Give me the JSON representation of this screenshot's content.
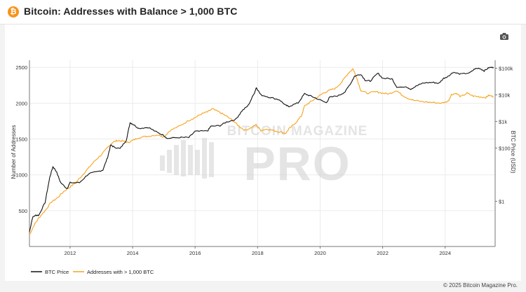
{
  "header": {
    "title": "Bitcoin: Addresses with Balance > 1,000 BTC",
    "logo_glyph": "₿"
  },
  "toolbar": {
    "camera_icon": "camera-icon"
  },
  "watermark": {
    "line1": "BITCOIN MAGAZINE",
    "line2": "PRO"
  },
  "footer": {
    "copyright": "© 2025 Bitcoin Magazine Pro."
  },
  "colors": {
    "btc_price": "#111111",
    "addresses": "#f7a21b",
    "accent": "#f7931a"
  },
  "chart_data": {
    "type": "line",
    "title": "Bitcoin: Addresses with Balance > 1,000 BTC",
    "xlabel": "",
    "ylabel_left": "Number of Addresses",
    "ylabel_right": "BTC Price (USD)",
    "x_range": [
      2010.7,
      2025.6
    ],
    "x_ticks": [
      "2012",
      "2014",
      "2016",
      "2018",
      "2020",
      "2022",
      "2024"
    ],
    "y_left_range": [
      0,
      2600
    ],
    "y_left_ticks": [
      "500",
      "1000",
      "1500",
      "2000",
      "2500"
    ],
    "y_right_scale": "log",
    "y_right_range": [
      0.02,
      200000
    ],
    "y_right_ticks": [
      "1",
      "100",
      "1k",
      "10k",
      "100k"
    ],
    "legend_position": "bottom-left",
    "grid": true,
    "series": [
      {
        "name": "BTC Price",
        "axis": "right",
        "points": [
          [
            2010.7,
            0.07
          ],
          [
            2010.8,
            0.25
          ],
          [
            2010.9,
            0.3
          ],
          [
            2011.0,
            0.3
          ],
          [
            2011.2,
            0.9
          ],
          [
            2011.35,
            8
          ],
          [
            2011.45,
            20
          ],
          [
            2011.55,
            14
          ],
          [
            2011.7,
            5
          ],
          [
            2011.9,
            3
          ],
          [
            2012.0,
            5
          ],
          [
            2012.3,
            5
          ],
          [
            2012.6,
            11
          ],
          [
            2012.9,
            13
          ],
          [
            2013.05,
            15
          ],
          [
            2013.2,
            45
          ],
          [
            2013.3,
            130
          ],
          [
            2013.4,
            110
          ],
          [
            2013.6,
            95
          ],
          [
            2013.8,
            200
          ],
          [
            2013.92,
            900
          ],
          [
            2014.0,
            800
          ],
          [
            2014.2,
            550
          ],
          [
            2014.5,
            600
          ],
          [
            2014.8,
            380
          ],
          [
            2015.0,
            300
          ],
          [
            2015.1,
            230
          ],
          [
            2015.5,
            250
          ],
          [
            2015.8,
            250
          ],
          [
            2016.0,
            420
          ],
          [
            2016.4,
            440
          ],
          [
            2016.5,
            650
          ],
          [
            2016.8,
            700
          ],
          [
            2017.0,
            950
          ],
          [
            2017.3,
            1200
          ],
          [
            2017.5,
            2500
          ],
          [
            2017.7,
            4000
          ],
          [
            2017.9,
            12000
          ],
          [
            2017.96,
            19000
          ],
          [
            2018.1,
            10000
          ],
          [
            2018.4,
            8000
          ],
          [
            2018.7,
            6500
          ],
          [
            2018.9,
            4000
          ],
          [
            2019.0,
            3700
          ],
          [
            2019.3,
            5000
          ],
          [
            2019.5,
            11000
          ],
          [
            2019.7,
            9000
          ],
          [
            2019.9,
            7200
          ],
          [
            2020.2,
            5000
          ],
          [
            2020.3,
            8000
          ],
          [
            2020.6,
            9500
          ],
          [
            2020.8,
            13000
          ],
          [
            2021.0,
            30000
          ],
          [
            2021.1,
            50000
          ],
          [
            2021.3,
            60000
          ],
          [
            2021.45,
            35000
          ],
          [
            2021.6,
            33000
          ],
          [
            2021.85,
            65000
          ],
          [
            2022.0,
            42000
          ],
          [
            2022.3,
            40000
          ],
          [
            2022.45,
            20000
          ],
          [
            2022.8,
            19000
          ],
          [
            2022.9,
            16500
          ],
          [
            2023.1,
            22000
          ],
          [
            2023.3,
            28000
          ],
          [
            2023.6,
            29500
          ],
          [
            2023.8,
            27000
          ],
          [
            2023.95,
            42000
          ],
          [
            2024.1,
            50000
          ],
          [
            2024.25,
            70000
          ],
          [
            2024.5,
            60000
          ],
          [
            2024.8,
            68000
          ],
          [
            2024.95,
            95000
          ],
          [
            2025.1,
            100000
          ],
          [
            2025.25,
            80000
          ],
          [
            2025.4,
            105000
          ],
          [
            2025.55,
            108000
          ]
        ]
      },
      {
        "name": "Addresses with > 1,000 BTC",
        "axis": "left",
        "points": [
          [
            2010.7,
            160
          ],
          [
            2010.85,
            300
          ],
          [
            2011.0,
            400
          ],
          [
            2011.2,
            500
          ],
          [
            2011.4,
            620
          ],
          [
            2011.6,
            680
          ],
          [
            2011.8,
            770
          ],
          [
            2012.0,
            830
          ],
          [
            2012.2,
            900
          ],
          [
            2012.4,
            1000
          ],
          [
            2012.6,
            1100
          ],
          [
            2012.8,
            1200
          ],
          [
            2013.0,
            1280
          ],
          [
            2013.2,
            1380
          ],
          [
            2013.35,
            1450
          ],
          [
            2013.5,
            1480
          ],
          [
            2013.7,
            1470
          ],
          [
            2013.85,
            1450
          ],
          [
            2014.0,
            1480
          ],
          [
            2014.2,
            1520
          ],
          [
            2014.5,
            1540
          ],
          [
            2014.8,
            1560
          ],
          [
            2015.0,
            1530
          ],
          [
            2015.2,
            1620
          ],
          [
            2015.5,
            1680
          ],
          [
            2015.8,
            1760
          ],
          [
            2016.0,
            1800
          ],
          [
            2016.2,
            1850
          ],
          [
            2016.4,
            1880
          ],
          [
            2016.55,
            1920
          ],
          [
            2016.8,
            1870
          ],
          [
            2017.0,
            1820
          ],
          [
            2017.2,
            1760
          ],
          [
            2017.4,
            1680
          ],
          [
            2017.6,
            1620
          ],
          [
            2017.8,
            1660
          ],
          [
            2017.95,
            1700
          ],
          [
            2018.1,
            1620
          ],
          [
            2018.3,
            1640
          ],
          [
            2018.5,
            1620
          ],
          [
            2018.7,
            1600
          ],
          [
            2018.9,
            1580
          ],
          [
            2019.0,
            1640
          ],
          [
            2019.2,
            1720
          ],
          [
            2019.4,
            1820
          ],
          [
            2019.5,
            1960
          ],
          [
            2019.7,
            2020
          ],
          [
            2019.9,
            2080
          ],
          [
            2020.1,
            2140
          ],
          [
            2020.3,
            2180
          ],
          [
            2020.5,
            2210
          ],
          [
            2020.7,
            2300
          ],
          [
            2020.9,
            2420
          ],
          [
            2021.05,
            2480
          ],
          [
            2021.15,
            2380
          ],
          [
            2021.3,
            2180
          ],
          [
            2021.5,
            2140
          ],
          [
            2021.8,
            2160
          ],
          [
            2022.0,
            2140
          ],
          [
            2022.2,
            2130
          ],
          [
            2022.45,
            2180
          ],
          [
            2022.6,
            2120
          ],
          [
            2022.8,
            2070
          ],
          [
            2023.0,
            2040
          ],
          [
            2023.3,
            2020
          ],
          [
            2023.6,
            2010
          ],
          [
            2023.9,
            2000
          ],
          [
            2024.1,
            2030
          ],
          [
            2024.2,
            2120
          ],
          [
            2024.35,
            2140
          ],
          [
            2024.5,
            2090
          ],
          [
            2024.7,
            2140
          ],
          [
            2024.9,
            2100
          ],
          [
            2025.1,
            2090
          ],
          [
            2025.3,
            2080
          ],
          [
            2025.4,
            2110
          ],
          [
            2025.55,
            2090
          ]
        ]
      }
    ]
  }
}
